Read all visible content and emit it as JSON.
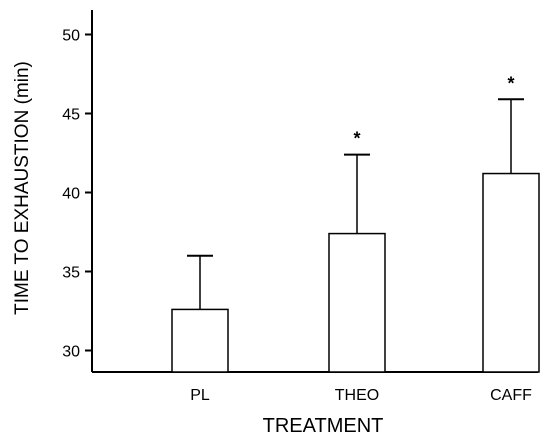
{
  "chart_data": {
    "type": "bar",
    "title": "",
    "xlabel": "TREATMENT",
    "ylabel": "TIME TO EXHAUSTION (min)",
    "ylim": [
      28.5,
      52
    ],
    "yticks": [
      30,
      35,
      40,
      45,
      50
    ],
    "ytick_labels": [
      "30",
      "35",
      "40",
      "45",
      "50"
    ],
    "categories": [
      "PL",
      "THEO",
      "CAFF"
    ],
    "values": [
      32.6,
      37.4,
      41.2
    ],
    "error_upper": [
      36.0,
      42.4,
      45.9
    ],
    "significance_markers": [
      "",
      "*",
      "*"
    ],
    "bar_fill": "#ffffff",
    "line_color": "#000000",
    "grid": false,
    "legend": "none"
  }
}
